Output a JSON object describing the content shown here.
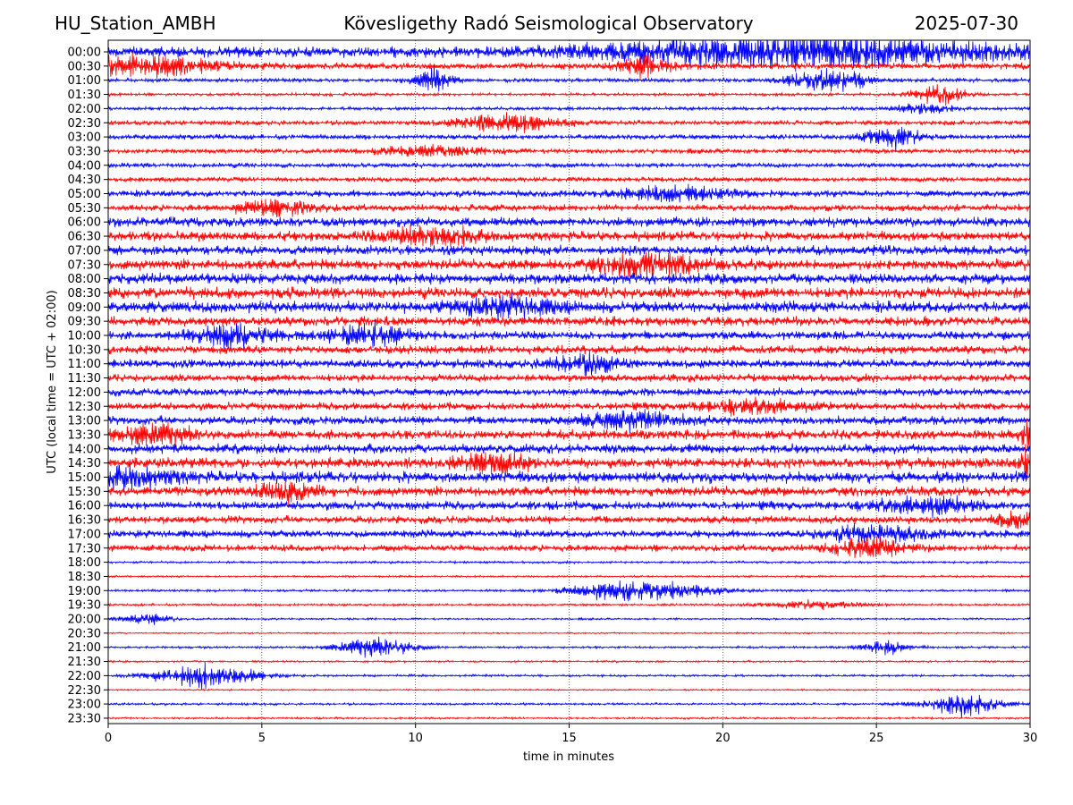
{
  "header": {
    "station": "HU_Station_AMBH",
    "title": "Kövesligethy Radó Seismological Observatory",
    "date": "2025-07-30"
  },
  "chart_data": {
    "type": "line",
    "title": "Kövesligethy Radó Seismological Observatory",
    "xlabel": "time in minutes",
    "ylabel": "UTC (local time = UTC + 02:00)",
    "xlim": [
      0,
      30
    ],
    "x_ticks": [
      0,
      5,
      10,
      15,
      20,
      25,
      30
    ],
    "grid": "vertical dotted lines at each x tick",
    "colors": {
      "even_rows": "#0000ff",
      "odd_rows": "#ff0000"
    },
    "rows": [
      {
        "label": "00:00",
        "color": "blue",
        "noise": 0.55,
        "events": [
          {
            "t": 22.5,
            "a": 1.6,
            "d": 7.5
          }
        ]
      },
      {
        "label": "00:30",
        "color": "red",
        "noise": 0.35,
        "events": [
          {
            "t": 1.0,
            "a": 1.2,
            "d": 3.0
          },
          {
            "t": 17.4,
            "a": 1.0,
            "d": 1.0
          }
        ]
      },
      {
        "label": "01:00",
        "color": "blue",
        "noise": 0.2,
        "events": [
          {
            "t": 10.6,
            "a": 1.3,
            "d": 0.8
          },
          {
            "t": 23.5,
            "a": 1.4,
            "d": 1.5
          }
        ]
      },
      {
        "label": "01:30",
        "color": "red",
        "noise": 0.15,
        "events": [
          {
            "t": 27.0,
            "a": 1.1,
            "d": 1.0
          }
        ]
      },
      {
        "label": "02:00",
        "color": "blue",
        "noise": 0.18,
        "events": [
          {
            "t": 26.5,
            "a": 0.6,
            "d": 1.0
          }
        ]
      },
      {
        "label": "02:30",
        "color": "red",
        "noise": 0.25,
        "events": [
          {
            "t": 13.0,
            "a": 1.0,
            "d": 2.0
          }
        ]
      },
      {
        "label": "03:00",
        "color": "blue",
        "noise": 0.25,
        "events": [
          {
            "t": 25.5,
            "a": 1.2,
            "d": 1.0
          }
        ]
      },
      {
        "label": "03:30",
        "color": "red",
        "noise": 0.25,
        "events": [
          {
            "t": 10.5,
            "a": 0.6,
            "d": 2.0
          }
        ]
      },
      {
        "label": "04:00",
        "color": "blue",
        "noise": 0.25,
        "events": []
      },
      {
        "label": "04:30",
        "color": "red",
        "noise": 0.25,
        "events": []
      },
      {
        "label": "05:00",
        "color": "blue",
        "noise": 0.35,
        "events": [
          {
            "t": 18.5,
            "a": 0.8,
            "d": 2.0
          }
        ]
      },
      {
        "label": "05:30",
        "color": "red",
        "noise": 0.35,
        "events": [
          {
            "t": 5.5,
            "a": 0.9,
            "d": 1.5
          }
        ]
      },
      {
        "label": "06:00",
        "color": "blue",
        "noise": 0.5,
        "events": []
      },
      {
        "label": "06:30",
        "color": "red",
        "noise": 0.5,
        "events": [
          {
            "t": 10.5,
            "a": 0.9,
            "d": 2.0
          }
        ]
      },
      {
        "label": "07:00",
        "color": "blue",
        "noise": 0.5,
        "events": []
      },
      {
        "label": "07:30",
        "color": "red",
        "noise": 0.55,
        "events": [
          {
            "t": 17.5,
            "a": 1.2,
            "d": 2.0
          }
        ]
      },
      {
        "label": "08:00",
        "color": "blue",
        "noise": 0.55,
        "events": []
      },
      {
        "label": "08:30",
        "color": "red",
        "noise": 0.6,
        "events": []
      },
      {
        "label": "09:00",
        "color": "blue",
        "noise": 0.6,
        "events": [
          {
            "t": 13.0,
            "a": 0.9,
            "d": 2.0
          }
        ]
      },
      {
        "label": "09:30",
        "color": "red",
        "noise": 0.5,
        "events": []
      },
      {
        "label": "10:00",
        "color": "blue",
        "noise": 0.45,
        "events": [
          {
            "t": 4.0,
            "a": 1.2,
            "d": 1.5
          },
          {
            "t": 8.5,
            "a": 1.2,
            "d": 1.5
          }
        ]
      },
      {
        "label": "10:30",
        "color": "red",
        "noise": 0.45,
        "events": []
      },
      {
        "label": "11:00",
        "color": "blue",
        "noise": 0.45,
        "events": [
          {
            "t": 15.5,
            "a": 1.0,
            "d": 1.5
          }
        ]
      },
      {
        "label": "11:30",
        "color": "red",
        "noise": 0.4,
        "events": []
      },
      {
        "label": "12:00",
        "color": "blue",
        "noise": 0.4,
        "events": []
      },
      {
        "label": "12:30",
        "color": "red",
        "noise": 0.4,
        "events": [
          {
            "t": 21.0,
            "a": 0.8,
            "d": 2.0
          }
        ]
      },
      {
        "label": "13:00",
        "color": "blue",
        "noise": 0.45,
        "events": [
          {
            "t": 17.0,
            "a": 0.8,
            "d": 2.0
          }
        ]
      },
      {
        "label": "13:30",
        "color": "red",
        "noise": 0.5,
        "events": [
          {
            "t": 1.5,
            "a": 1.1,
            "d": 1.5
          },
          {
            "t": 29.9,
            "a": 1.5,
            "d": 0.3
          }
        ]
      },
      {
        "label": "14:00",
        "color": "blue",
        "noise": 0.5,
        "events": []
      },
      {
        "label": "14:30",
        "color": "red",
        "noise": 0.55,
        "events": [
          {
            "t": 12.5,
            "a": 1.0,
            "d": 1.5
          },
          {
            "t": 29.9,
            "a": 1.6,
            "d": 0.3
          }
        ]
      },
      {
        "label": "15:00",
        "color": "blue",
        "noise": 0.6,
        "events": [
          {
            "t": 0.5,
            "a": 1.0,
            "d": 2.0
          }
        ]
      },
      {
        "label": "15:30",
        "color": "red",
        "noise": 0.5,
        "events": [
          {
            "t": 5.8,
            "a": 1.0,
            "d": 1.0
          }
        ]
      },
      {
        "label": "16:00",
        "color": "blue",
        "noise": 0.45,
        "events": [
          {
            "t": 26.5,
            "a": 0.9,
            "d": 2.0
          }
        ]
      },
      {
        "label": "16:30",
        "color": "red",
        "noise": 0.4,
        "events": [
          {
            "t": 29.5,
            "a": 0.8,
            "d": 0.8
          }
        ]
      },
      {
        "label": "17:00",
        "color": "blue",
        "noise": 0.4,
        "events": [
          {
            "t": 25.0,
            "a": 0.8,
            "d": 2.0
          }
        ]
      },
      {
        "label": "17:30",
        "color": "red",
        "noise": 0.35,
        "events": [
          {
            "t": 24.8,
            "a": 1.0,
            "d": 1.5
          }
        ]
      },
      {
        "label": "18:00",
        "color": "blue",
        "noise": 0.12,
        "events": []
      },
      {
        "label": "18:30",
        "color": "red",
        "noise": 0.1,
        "events": []
      },
      {
        "label": "19:00",
        "color": "blue",
        "noise": 0.12,
        "events": [
          {
            "t": 16.5,
            "a": 0.9,
            "d": 2.0
          },
          {
            "t": 18.5,
            "a": 0.7,
            "d": 2.0
          }
        ]
      },
      {
        "label": "19:30",
        "color": "red",
        "noise": 0.12,
        "events": [
          {
            "t": 23.0,
            "a": 0.4,
            "d": 2.0
          }
        ]
      },
      {
        "label": "20:00",
        "color": "blue",
        "noise": 0.1,
        "events": [
          {
            "t": 1.2,
            "a": 0.6,
            "d": 1.0
          }
        ]
      },
      {
        "label": "20:30",
        "color": "red",
        "noise": 0.08,
        "events": []
      },
      {
        "label": "21:00",
        "color": "blue",
        "noise": 0.12,
        "events": [
          {
            "t": 8.7,
            "a": 1.1,
            "d": 1.5
          },
          {
            "t": 25.3,
            "a": 0.7,
            "d": 1.0
          }
        ]
      },
      {
        "label": "21:30",
        "color": "red",
        "noise": 0.1,
        "events": []
      },
      {
        "label": "22:00",
        "color": "blue",
        "noise": 0.12,
        "events": [
          {
            "t": 3.2,
            "a": 1.4,
            "d": 2.0
          }
        ]
      },
      {
        "label": "22:30",
        "color": "red",
        "noise": 0.08,
        "events": []
      },
      {
        "label": "23:00",
        "color": "blue",
        "noise": 0.12,
        "events": [
          {
            "t": 27.8,
            "a": 1.3,
            "d": 1.5
          }
        ]
      },
      {
        "label": "23:30",
        "color": "red",
        "noise": 0.1,
        "events": []
      }
    ]
  }
}
